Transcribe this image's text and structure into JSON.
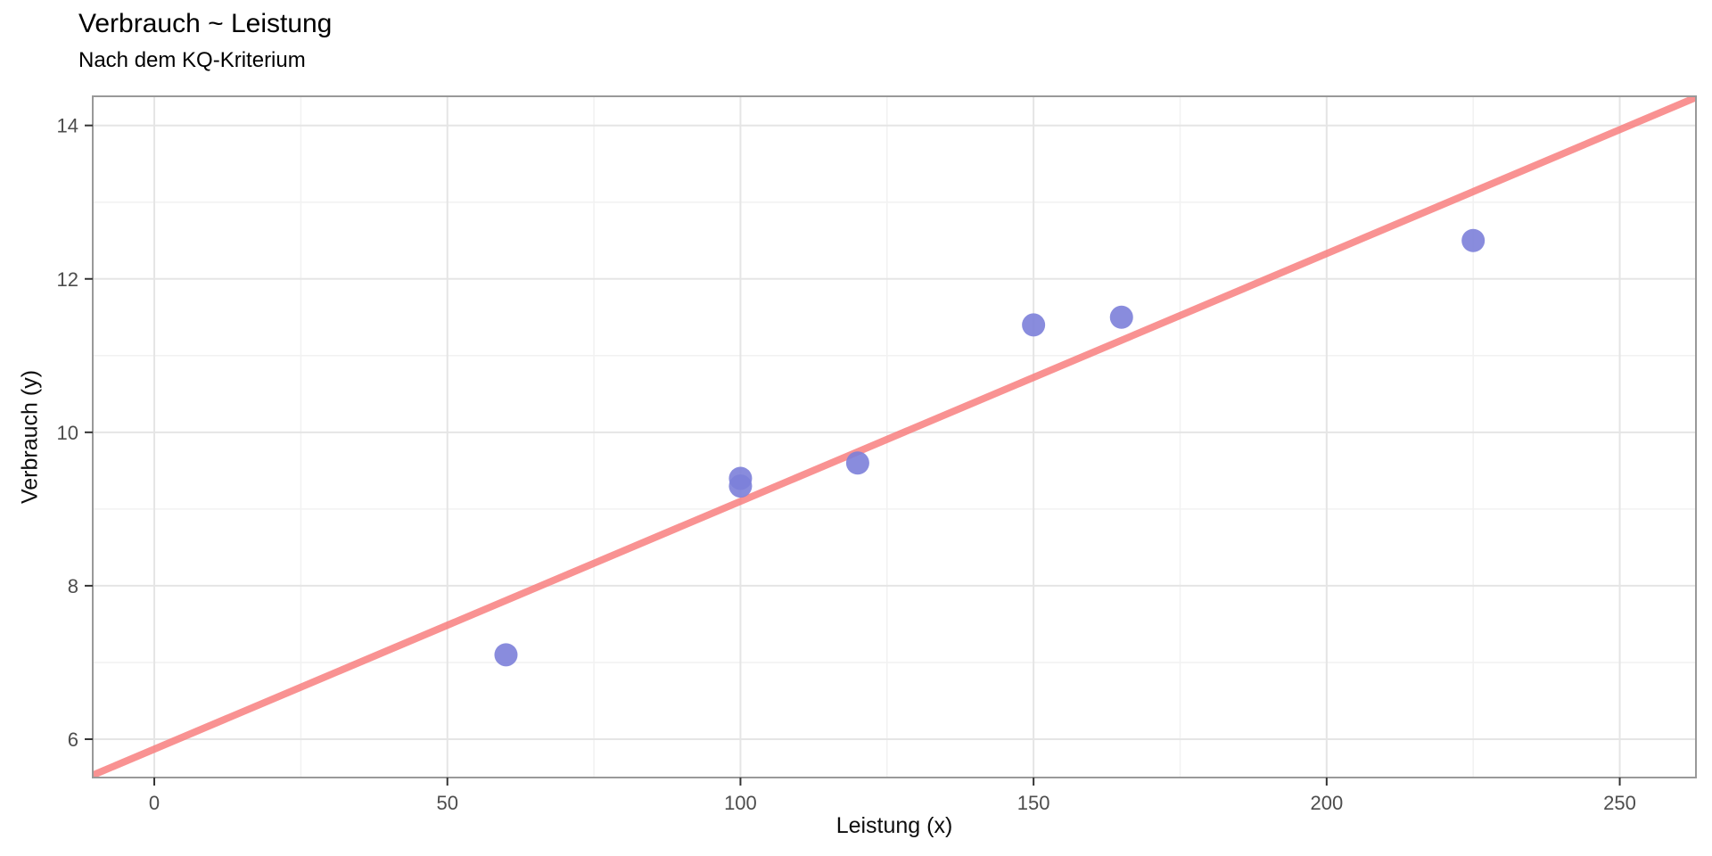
{
  "chart_data": {
    "type": "scatter",
    "title": "Verbrauch ~ Leistung",
    "subtitle": "Nach dem KQ-Kriterium",
    "xlabel": "Leistung (x)",
    "ylabel": "Verbrauch (y)",
    "points": [
      {
        "x": 60,
        "y": 7.1
      },
      {
        "x": 100,
        "y": 9.3
      },
      {
        "x": 100,
        "y": 9.4
      },
      {
        "x": 120,
        "y": 9.6
      },
      {
        "x": 150,
        "y": 11.4
      },
      {
        "x": 165,
        "y": 11.5
      },
      {
        "x": 225,
        "y": 12.5
      }
    ],
    "fit_line": {
      "type": "least-squares-regression",
      "intercept": 5.87,
      "slope": 0.0323,
      "x0": -10.5,
      "x1": 263
    },
    "xlim": [
      -10.5,
      263
    ],
    "ylim": [
      5.5,
      14.38
    ],
    "x_ticks": [
      0,
      50,
      100,
      150,
      200,
      250
    ],
    "y_ticks": [
      6,
      8,
      10,
      12,
      14
    ],
    "x_minor_ticks": [
      25,
      75,
      125,
      175,
      225
    ],
    "y_minor_ticks": [
      7,
      9,
      11,
      13
    ],
    "grid": true,
    "legend": "none",
    "colors": {
      "point_fill": "#7c80d9",
      "line_stroke": "#f87f7f",
      "major_grid": "#e5e5e5",
      "minor_grid": "#f2f2f2",
      "panel_border": "#999999",
      "tick_mark": "#333333",
      "tick_label": "#4d4d4d",
      "background": "#ffffff"
    }
  }
}
